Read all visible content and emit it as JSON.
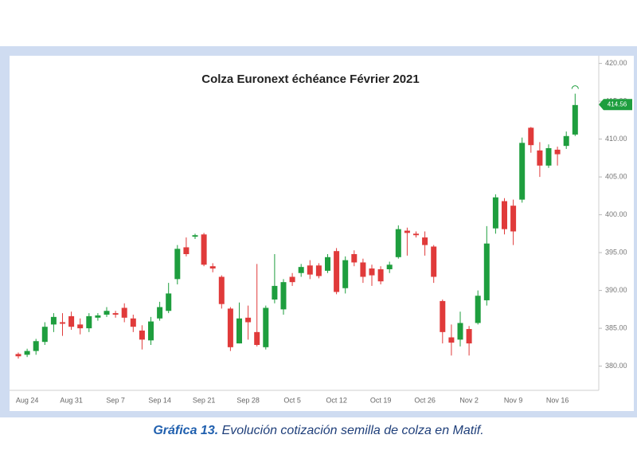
{
  "chart_data": {
    "type": "candlestick",
    "title": "Colza Euronext échéance Février 2021",
    "categories": [
      null,
      "Aug 24",
      null,
      null,
      null,
      null,
      "Aug 31",
      null,
      null,
      null,
      null,
      "Sep 7",
      null,
      null,
      null,
      null,
      "Sep 14",
      null,
      null,
      null,
      null,
      "Sep 21",
      null,
      null,
      null,
      null,
      "Sep 28",
      null,
      null,
      null,
      null,
      "Oct 5",
      null,
      null,
      null,
      null,
      "Oct 12",
      null,
      null,
      null,
      null,
      "Oct 19",
      null,
      null,
      null,
      null,
      "Oct 26",
      null,
      null,
      null,
      null,
      "Nov 2",
      null,
      null,
      null,
      null,
      "Nov 9",
      null,
      null,
      null,
      null,
      "Nov 16",
      null,
      null
    ],
    "open": [
      381.6,
      381.5,
      382,
      383.2,
      385.5,
      385.8,
      386.6,
      385.5,
      385,
      386.4,
      386.8,
      387,
      387.7,
      386.3,
      384.7,
      383.4,
      386.3,
      387.3,
      391.5,
      395.7,
      397.1,
      397.4,
      393.2,
      391.8,
      387.6,
      383,
      386.4,
      384.5,
      382.5,
      388.8,
      387.5,
      391.8,
      392.3,
      393.3,
      393.3,
      392.6,
      395.2,
      390.3,
      394.8,
      393.7,
      392.9,
      392.8,
      392.8,
      394.4,
      397.9,
      397.5,
      397,
      395.8,
      388.6,
      383.8,
      383.5,
      384.9,
      385.7,
      388.7,
      398.2,
      401.8,
      401.2,
      402,
      411.5,
      408.5,
      406.5,
      408.6,
      409.1,
      410.6
    ],
    "high": [
      381.8,
      382.3,
      383.6,
      385.8,
      387,
      387,
      387.2,
      386.3,
      387,
      387,
      387.8,
      387.3,
      388.3,
      386.8,
      385.4,
      386.5,
      388.5,
      391,
      396,
      397,
      397.5,
      397.6,
      393.6,
      392,
      387.8,
      388.4,
      388,
      393.5,
      388,
      394.8,
      391.5,
      392.3,
      393.5,
      394,
      393.6,
      394.8,
      395.6,
      394.5,
      395.3,
      394.2,
      393.4,
      393.2,
      393.8,
      398.6,
      398.3,
      397.8,
      397.8,
      396,
      388.8,
      385.5,
      387.2,
      385.3,
      390,
      398.5,
      402.7,
      402.2,
      402,
      410.2,
      411.6,
      409.6,
      409.3,
      409,
      411,
      416
    ],
    "low": [
      381,
      381.2,
      381.5,
      382.8,
      384.5,
      384,
      384.8,
      384.2,
      384.5,
      386,
      386.5,
      386.4,
      385.8,
      384.5,
      382.2,
      382.8,
      386,
      387,
      390.8,
      394.5,
      396.8,
      393.2,
      392.4,
      387.6,
      382,
      383,
      383.5,
      382.6,
      382.2,
      388.3,
      386.8,
      390.6,
      391.8,
      391.5,
      391.6,
      392.3,
      389.5,
      389.6,
      393.2,
      391,
      390.6,
      390.8,
      392.3,
      394.2,
      394.6,
      397,
      394.6,
      391,
      383,
      381.4,
      382.6,
      381.4,
      385.5,
      388,
      397.5,
      397.4,
      396,
      401.6,
      408.2,
      405,
      406.2,
      406.5,
      408.7,
      410.4
    ],
    "close": [
      381.3,
      382,
      383.3,
      385.2,
      386.5,
      385.6,
      385.2,
      385,
      386.6,
      386.7,
      387.3,
      386.8,
      386.4,
      385.2,
      383.5,
      385.9,
      387.8,
      389.6,
      395.5,
      394.8,
      397.3,
      393.4,
      392.9,
      388.2,
      382.5,
      386.3,
      385.8,
      382.8,
      387.7,
      390.6,
      391.1,
      391.1,
      393.1,
      392.1,
      391.9,
      394.4,
      389.8,
      394,
      393.7,
      391.8,
      392,
      391.2,
      393.4,
      398.1,
      397.6,
      397.3,
      396,
      391.8,
      384.5,
      383.1,
      385.7,
      383,
      389.3,
      396.2,
      402.3,
      398.1,
      397.8,
      409.5,
      409.2,
      406.5,
      408.8,
      408,
      410.4,
      414.5
    ],
    "up_color": "#1e9e3e",
    "down_color": "#e03a3a",
    "last_price": 414.56,
    "ylim": [
      376.8,
      420.8
    ],
    "yticks": [
      {
        "value": 380,
        "label": "380.00"
      },
      {
        "value": 385,
        "label": "385.00"
      },
      {
        "value": 390,
        "label": "390.00"
      },
      {
        "value": 395,
        "label": "395.00"
      },
      {
        "value": 400,
        "label": "400.00"
      },
      {
        "value": 405,
        "label": "405.00"
      },
      {
        "value": 410,
        "label": "410.00"
      },
      {
        "value": 415,
        "label": "415.00"
      },
      {
        "value": 420,
        "label": "420.00"
      }
    ]
  },
  "caption": {
    "label": "Gráfica 13.",
    "text": "Evolución cotización semilla de colza en Matif."
  }
}
